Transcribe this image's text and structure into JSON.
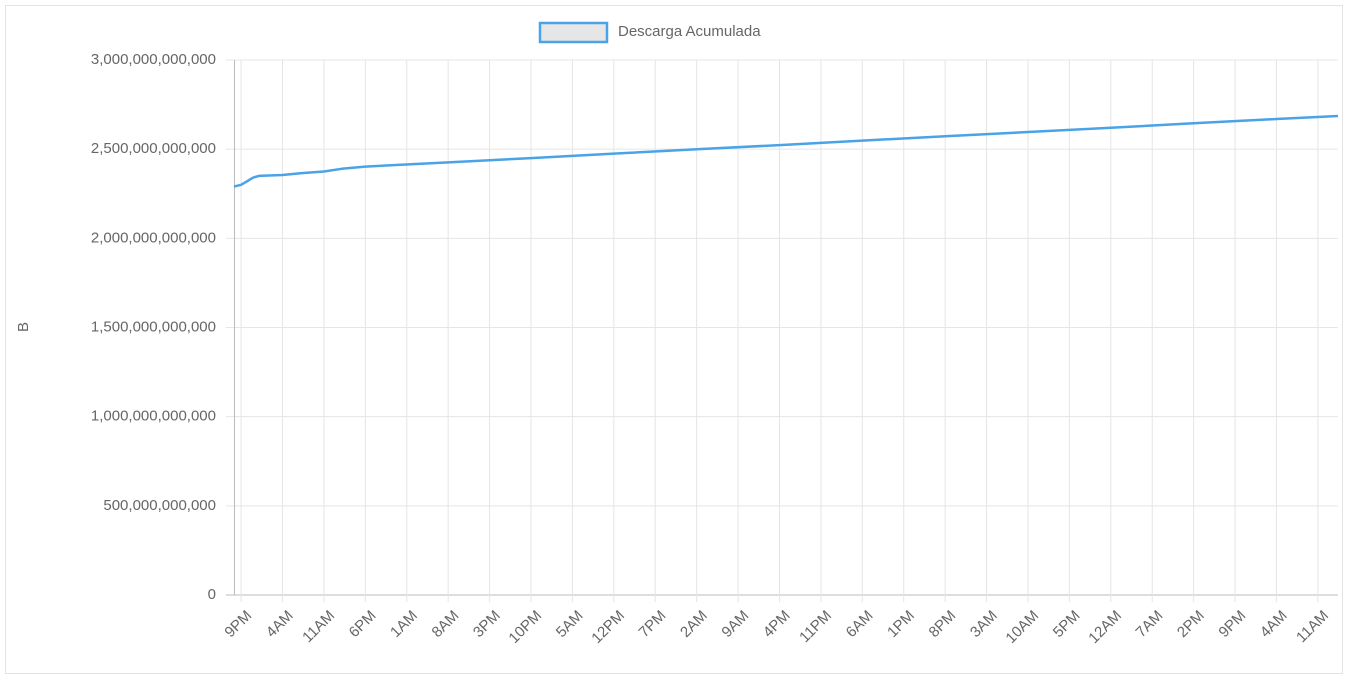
{
  "chart_data": {
    "type": "line",
    "y_axis_label": "B",
    "series": [
      {
        "name": "Descarga Acumulada",
        "color": "#4aa3e6",
        "x": [
          -1.2,
          0,
          1,
          2,
          3,
          7,
          10,
          14,
          17,
          21,
          35,
          49,
          63,
          77,
          91,
          105,
          119,
          133,
          147,
          161,
          175,
          185.4
        ],
        "values": [
          2290000000000,
          2300000000000,
          2320000000000,
          2340000000000,
          2350000000000,
          2355000000000,
          2365000000000,
          2375000000000,
          2390000000000,
          2402000000000,
          2426000000000,
          2450000000000,
          2475000000000,
          2499000000000,
          2523000000000,
          2548000000000,
          2572000000000,
          2596000000000,
          2620000000000,
          2645000000000,
          2669000000000,
          2686000000000
        ]
      }
    ],
    "xlim": [
      -1.2,
      185.4
    ],
    "xticks": [
      {
        "value": 0,
        "label": "9PM"
      },
      {
        "value": 7,
        "label": "4AM"
      },
      {
        "value": 14,
        "label": "11AM"
      },
      {
        "value": 21,
        "label": "6PM"
      },
      {
        "value": 28,
        "label": "1AM"
      },
      {
        "value": 35,
        "label": "8AM"
      },
      {
        "value": 42,
        "label": "3PM"
      },
      {
        "value": 49,
        "label": "10PM"
      },
      {
        "value": 56,
        "label": "5AM"
      },
      {
        "value": 63,
        "label": "12PM"
      },
      {
        "value": 70,
        "label": "7PM"
      },
      {
        "value": 77,
        "label": "2AM"
      },
      {
        "value": 84,
        "label": "9AM"
      },
      {
        "value": 91,
        "label": "4PM"
      },
      {
        "value": 98,
        "label": "11PM"
      },
      {
        "value": 105,
        "label": "6AM"
      },
      {
        "value": 112,
        "label": "1PM"
      },
      {
        "value": 119,
        "label": "8PM"
      },
      {
        "value": 126,
        "label": "3AM"
      },
      {
        "value": 133,
        "label": "10AM"
      },
      {
        "value": 140,
        "label": "5PM"
      },
      {
        "value": 147,
        "label": "12AM"
      },
      {
        "value": 154,
        "label": "7AM"
      },
      {
        "value": 161,
        "label": "2PM"
      },
      {
        "value": 168,
        "label": "9PM"
      },
      {
        "value": 175,
        "label": "4AM"
      },
      {
        "value": 182,
        "label": "11AM"
      }
    ],
    "ylim": [
      0,
      3000000000000
    ],
    "yticks": [
      0,
      {
        "value": 500000000000,
        "label": "500,000,000,000"
      },
      {
        "value": 1000000000000,
        "label": "1,000,000,000,000"
      },
      {
        "value": 1500000000000,
        "label": "1,500,000,000,000"
      },
      {
        "value": 2000000000000,
        "label": "2,000,000,000,000"
      },
      {
        "value": 2500000000000,
        "label": "2,500,000,000,000"
      },
      {
        "value": 3000000000000,
        "label": "3,000,000,000,000"
      }
    ],
    "grid": true
  }
}
